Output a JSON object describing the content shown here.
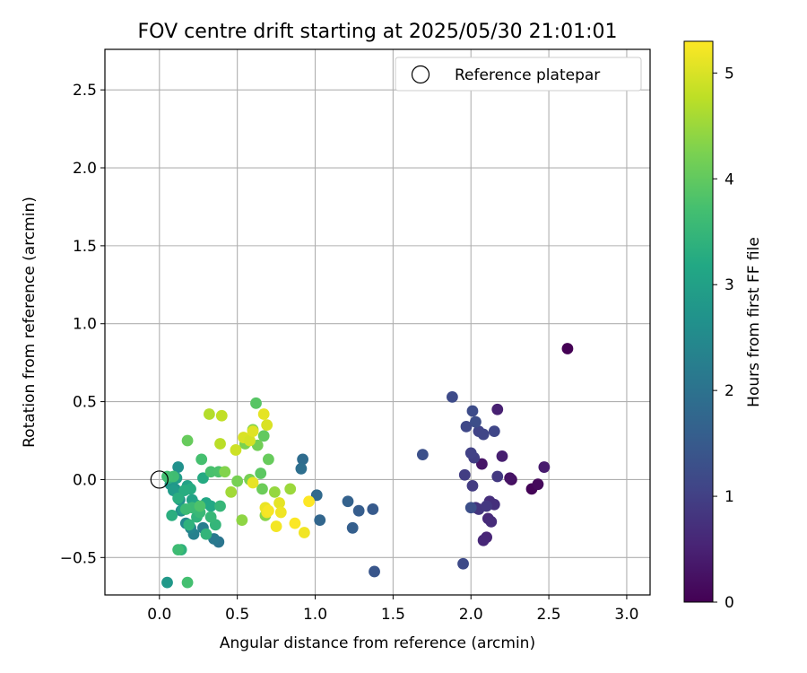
{
  "chart_data": {
    "type": "scatter",
    "title": "FOV centre drift starting at 2025/05/30 21:01:01",
    "xlabel": "Angular distance from reference (arcmin)",
    "ylabel": "Rotation from reference (arcmin)",
    "xlim": [
      -0.35,
      3.15
    ],
    "ylim": [
      -0.74,
      2.76
    ],
    "xticks": [
      0.0,
      0.5,
      1.0,
      1.5,
      2.0,
      2.5,
      3.0
    ],
    "xtick_labels": [
      "0.0",
      "0.5",
      "1.0",
      "1.5",
      "2.0",
      "2.5",
      "3.0"
    ],
    "yticks": [
      -0.5,
      0.0,
      0.5,
      1.0,
      1.5,
      2.0,
      2.5
    ],
    "ytick_labels": [
      "−0.5",
      "0.0",
      "0.5",
      "1.0",
      "1.5",
      "2.0",
      "2.5"
    ],
    "grid": true,
    "legend": {
      "placement": "top-right",
      "entries": [
        "Reference platepar"
      ]
    },
    "reference_point": {
      "x": 0.0,
      "y": 0.0,
      "label": "Reference platepar"
    },
    "colorbar": {
      "label": "Hours from first FF file",
      "colormap": "viridis",
      "range": [
        0,
        5.3
      ],
      "ticks": [
        0,
        1,
        2,
        3,
        4,
        5
      ],
      "tick_labels": [
        "0",
        "1",
        "2",
        "3",
        "4",
        "5"
      ]
    },
    "series": [
      {
        "x": [
          2.62,
          2.39,
          2.43,
          2.26,
          2.25,
          2.07,
          2.47,
          2.2,
          2.17,
          2.1,
          2.08,
          2.11,
          2.13,
          2.12,
          2.15,
          2.03,
          2.05,
          2.1,
          2.17,
          2.01,
          1.96,
          2.02,
          2.0,
          2.05,
          2.08,
          2.15,
          1.97,
          1.95,
          1.88,
          2.01,
          2.03,
          2.0,
          1.69
        ],
        "y": [
          0.84,
          -0.06,
          -0.03,
          0.0,
          0.01,
          0.1,
          0.08,
          0.15,
          0.45,
          -0.37,
          -0.39,
          -0.25,
          -0.27,
          -0.14,
          -0.16,
          -0.18,
          -0.19,
          -0.17,
          0.02,
          -0.04,
          0.03,
          0.14,
          0.17,
          0.31,
          0.29,
          0.31,
          0.34,
          -0.54,
          0.53,
          0.44,
          0.37,
          -0.18,
          0.16
        ],
        "hours": [
          0.0,
          0.05,
          0.12,
          0.2,
          0.28,
          0.3,
          0.4,
          0.45,
          0.48,
          0.55,
          0.58,
          0.62,
          0.66,
          0.7,
          0.72,
          0.78,
          0.82,
          0.86,
          0.88,
          0.92,
          0.95,
          0.98,
          1.02,
          1.06,
          1.1,
          1.12,
          1.14,
          1.18,
          1.2,
          1.22,
          1.25,
          1.28,
          1.3
        ]
      },
      {
        "x": [
          1.38,
          1.37,
          1.28,
          1.24,
          1.21,
          1.03,
          1.01,
          0.92,
          0.91
        ],
        "y": [
          -0.59,
          -0.19,
          -0.2,
          -0.31,
          -0.14,
          -0.26,
          -0.1,
          0.13,
          0.07
        ],
        "hours": [
          1.42,
          1.5,
          1.55,
          1.6,
          1.66,
          1.74,
          1.8,
          1.86,
          1.92
        ]
      },
      {
        "x": [
          0.38,
          0.35,
          0.28,
          0.22,
          0.2,
          0.17,
          0.14,
          0.13,
          0.12,
          0.1,
          0.07,
          0.05,
          0.09,
          0.11,
          0.15,
          0.18,
          0.21,
          0.23,
          0.25,
          0.3,
          0.33,
          0.28,
          0.2,
          0.16,
          0.12,
          0.08,
          0.06,
          0.14,
          0.19,
          0.24,
          0.3,
          0.36,
          0.39,
          0.33,
          0.26,
          0.21,
          0.17,
          0.12,
          0.09,
          0.05,
          0.18,
          0.27,
          0.33,
          0.38,
          0.26
        ],
        "y": [
          -0.4,
          -0.38,
          -0.31,
          -0.35,
          -0.31,
          -0.28,
          -0.2,
          -0.13,
          0.08,
          -0.06,
          -0.03,
          -0.66,
          -0.07,
          0.01,
          -0.19,
          -0.04,
          -0.13,
          -0.16,
          -0.2,
          -0.15,
          -0.17,
          0.01,
          -0.06,
          -0.07,
          -0.12,
          -0.23,
          0.01,
          -0.45,
          -0.29,
          -0.24,
          -0.35,
          -0.29,
          -0.17,
          -0.24,
          -0.21,
          -0.18,
          -0.19,
          -0.45,
          0.02,
          0.02,
          -0.66,
          0.13,
          0.05,
          0.05,
          -0.17
        ],
        "hours": [
          2.05,
          2.15,
          2.25,
          2.3,
          2.4,
          2.45,
          2.55,
          2.6,
          2.65,
          2.72,
          2.78,
          2.82,
          2.88,
          2.92,
          2.98,
          3.02,
          3.05,
          3.08,
          3.12,
          3.15,
          3.18,
          3.22,
          3.25,
          3.28,
          3.3,
          3.32,
          3.35,
          3.38,
          3.4,
          3.42,
          3.45,
          3.48,
          3.5,
          3.52,
          3.55,
          3.58,
          3.6,
          3.62,
          3.65,
          3.68,
          3.7,
          3.72,
          3.75,
          3.78,
          3.8
        ]
      },
      {
        "x": [
          0.62,
          0.65,
          0.67,
          0.7,
          0.66,
          0.63,
          0.58,
          0.55,
          0.6,
          0.68,
          0.18,
          0.5,
          0.42,
          0.53,
          0.74,
          0.84,
          0.46
        ],
        "y": [
          0.49,
          0.04,
          0.28,
          0.13,
          -0.06,
          0.22,
          0.0,
          0.23,
          0.32,
          -0.23,
          0.25,
          -0.01,
          0.05,
          -0.26,
          -0.08,
          -0.06,
          -0.08
        ],
        "hours": [
          3.9,
          3.95,
          4.0,
          4.05,
          4.1,
          4.15,
          4.2,
          4.25,
          4.3,
          4.35,
          4.05,
          4.2,
          4.3,
          4.4,
          4.45,
          4.5,
          4.55
        ]
      },
      {
        "x": [
          0.32,
          0.4,
          0.39,
          0.49,
          0.54,
          0.58,
          0.6,
          0.67,
          0.69,
          0.68,
          0.69,
          0.7,
          0.77,
          0.78,
          0.75,
          0.87,
          0.93,
          0.96,
          0.6
        ],
        "y": [
          0.42,
          0.41,
          0.23,
          0.19,
          0.27,
          0.25,
          0.31,
          0.42,
          0.35,
          -0.18,
          -0.21,
          -0.2,
          -0.15,
          -0.21,
          -0.3,
          -0.28,
          -0.34,
          -0.14,
          -0.02
        ],
        "hours": [
          4.7,
          4.8,
          4.75,
          4.9,
          5.0,
          4.95,
          5.05,
          5.1,
          5.0,
          5.15,
          5.2,
          5.25,
          5.1,
          5.18,
          5.22,
          5.28,
          5.2,
          5.3,
          5.12
        ]
      }
    ]
  }
}
